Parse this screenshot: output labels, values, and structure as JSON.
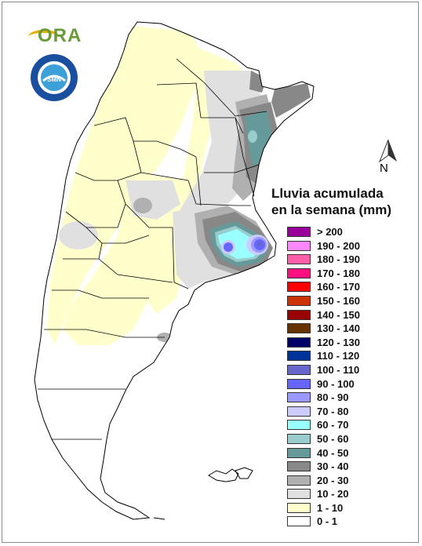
{
  "logo": {
    "text": "ORA"
  },
  "seal": {
    "label": "SERVICIO METEOROLÓGICO NACIONAL · ARGENTINA"
  },
  "north_arrow": {
    "label": "N"
  },
  "legend": {
    "title_line1": "Lluvia acumulada",
    "title_line2": "en la semana (mm)",
    "items": [
      {
        "label": "> 200",
        "color": "#990099"
      },
      {
        "label": "190 - 200",
        "color": "#ff88ff"
      },
      {
        "label": "180 - 190",
        "color": "#ff5fa8"
      },
      {
        "label": "170 - 180",
        "color": "#ff0f7f"
      },
      {
        "label": "160 - 170",
        "color": "#ff0000"
      },
      {
        "label": "150 - 160",
        "color": "#cc3300"
      },
      {
        "label": "140 - 150",
        "color": "#990000"
      },
      {
        "label": "130 - 140",
        "color": "#663300"
      },
      {
        "label": "120 - 130",
        "color": "#000066"
      },
      {
        "label": "110 - 120",
        "color": "#003399"
      },
      {
        "label": "100 - 110",
        "color": "#6666cc"
      },
      {
        "label": "90 - 100",
        "color": "#6666ff"
      },
      {
        "label": "80 - 90",
        "color": "#9999ff"
      },
      {
        "label": "70 - 80",
        "color": "#ccccff"
      },
      {
        "label": "60 - 70",
        "color": "#99ffff"
      },
      {
        "label": "50 - 60",
        "color": "#99cccc"
      },
      {
        "label": "40 - 50",
        "color": "#669999"
      },
      {
        "label": "30 - 40",
        "color": "#888888"
      },
      {
        "label": "20 - 30",
        "color": "#b0b0b0"
      },
      {
        "label": "10 - 20",
        "color": "#e0e0e0"
      },
      {
        "label": "1 - 10",
        "color": "#ffffcc"
      },
      {
        "label": "0 - 1",
        "color": "#ffffff"
      }
    ]
  }
}
